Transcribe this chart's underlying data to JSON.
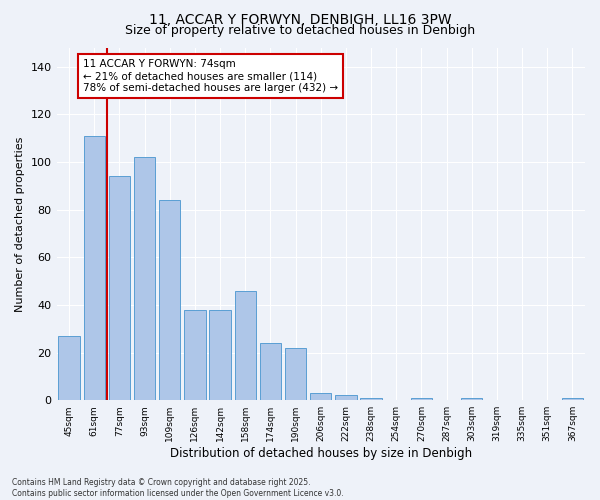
{
  "title1": "11, ACCAR Y FORWYN, DENBIGH, LL16 3PW",
  "title2": "Size of property relative to detached houses in Denbigh",
  "xlabel": "Distribution of detached houses by size in Denbigh",
  "ylabel": "Number of detached properties",
  "categories": [
    "45sqm",
    "61sqm",
    "77sqm",
    "93sqm",
    "109sqm",
    "126sqm",
    "142sqm",
    "158sqm",
    "174sqm",
    "190sqm",
    "206sqm",
    "222sqm",
    "238sqm",
    "254sqm",
    "270sqm",
    "287sqm",
    "303sqm",
    "319sqm",
    "335sqm",
    "351sqm",
    "367sqm"
  ],
  "values": [
    27,
    111,
    94,
    102,
    84,
    38,
    38,
    46,
    24,
    22,
    3,
    2,
    1,
    0,
    1,
    0,
    1,
    0,
    0,
    0,
    1
  ],
  "bar_color": "#aec6e8",
  "bar_edge_color": "#5a9fd4",
  "vline_x": 1.5,
  "vline_color": "#cc0000",
  "ylim": [
    0,
    148
  ],
  "yticks": [
    0,
    20,
    40,
    60,
    80,
    100,
    120,
    140
  ],
  "annotation_text": "11 ACCAR Y FORWYN: 74sqm\n← 21% of detached houses are smaller (114)\n78% of semi-detached houses are larger (432) →",
  "annotation_box_color": "#cc0000",
  "footer_text": "Contains HM Land Registry data © Crown copyright and database right 2025.\nContains public sector information licensed under the Open Government Licence v3.0.",
  "bg_color": "#eef2f9",
  "grid_color": "#ffffff",
  "title_fontsize": 10,
  "subtitle_fontsize": 9,
  "ann_fontsize": 7.5,
  "ylabel_fontsize": 8,
  "xlabel_fontsize": 8.5,
  "footer_fontsize": 5.5
}
